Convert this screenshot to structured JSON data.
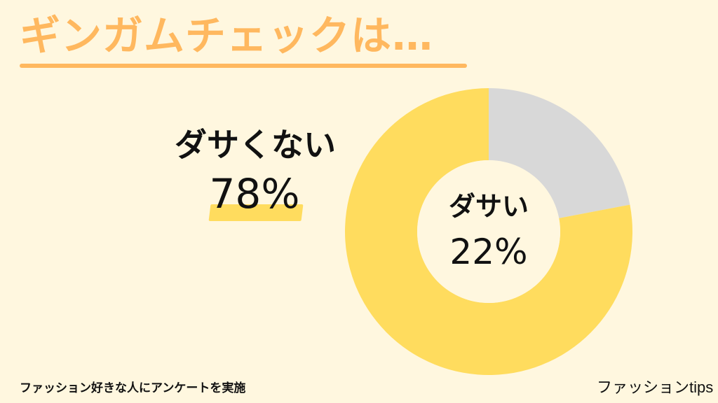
{
  "header": {
    "title": "ギンガムチェックは…"
  },
  "chart_data": {
    "type": "pie",
    "slices": [
      {
        "label": "ダサい",
        "value": 22,
        "display": "22%",
        "color": "#d8d8d8"
      },
      {
        "label": "ダサくない",
        "value": 78,
        "display": "78%",
        "color": "#ffdc5e"
      }
    ],
    "title": "",
    "legend_placement": "none",
    "donut": true
  },
  "callouts": {
    "major_label": "ダサくない",
    "major_value": "78%",
    "center_label": "ダサい",
    "center_value": "22%"
  },
  "footer": {
    "left": "ファッション好きな人にアンケートを実施",
    "right": "ファッションtips"
  },
  "colors": {
    "background": "#fff7df",
    "accent": "#ffb85f",
    "highlight": "#ffdc5e",
    "text": "#111111",
    "slice_gray": "#d8d8d8"
  }
}
